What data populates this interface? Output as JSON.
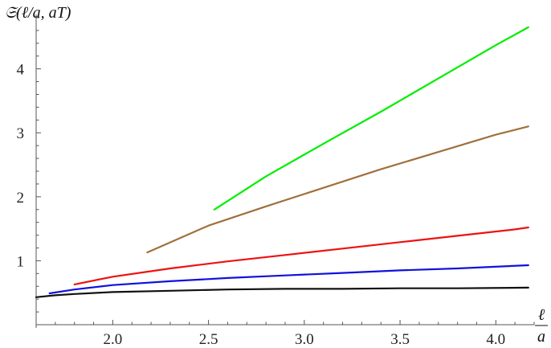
{
  "chart_data": {
    "type": "line",
    "title": "",
    "xlabel_top": "ℓ",
    "xlabel_bottom": "a",
    "ylabel": "𝔖(ℓ/a, aT)",
    "xlim": [
      1.6,
      4.2
    ],
    "ylim": [
      -0.05,
      4.85
    ],
    "xticks": [
      2.0,
      2.5,
      3.0,
      3.5,
      4.0
    ],
    "xtick_labels": [
      "2.0",
      "2.5",
      "3.0",
      "3.5",
      "4.0"
    ],
    "yticks": [
      1,
      2,
      3,
      4
    ],
    "ytick_labels": [
      "1",
      "2",
      "3",
      "4"
    ],
    "grid": false,
    "series": [
      {
        "color": "#00ee00",
        "x": [
          2.53,
          2.8,
          3.1,
          3.4,
          3.7,
          4.0,
          4.17
        ],
        "y": [
          1.8,
          2.32,
          2.83,
          3.33,
          3.85,
          4.37,
          4.65
        ]
      },
      {
        "color": "#a0703c",
        "x": [
          2.18,
          2.5,
          2.8,
          3.1,
          3.4,
          3.7,
          4.0,
          4.17
        ],
        "y": [
          1.13,
          1.55,
          1.85,
          2.14,
          2.43,
          2.7,
          2.97,
          3.1
        ]
      },
      {
        "color": "#ee1111",
        "x": [
          1.8,
          2.0,
          2.3,
          2.6,
          2.9,
          3.2,
          3.5,
          3.8,
          4.1,
          4.17
        ],
        "y": [
          0.63,
          0.75,
          0.88,
          0.99,
          1.09,
          1.19,
          1.29,
          1.39,
          1.49,
          1.52
        ]
      },
      {
        "color": "#1111dd",
        "x": [
          1.67,
          1.8,
          2.0,
          2.3,
          2.6,
          2.9,
          3.2,
          3.5,
          3.8,
          4.17
        ],
        "y": [
          0.49,
          0.55,
          0.62,
          0.68,
          0.73,
          0.77,
          0.81,
          0.85,
          0.88,
          0.93
        ]
      },
      {
        "color": "#111111",
        "x": [
          1.6,
          1.7,
          1.8,
          2.0,
          2.3,
          2.6,
          2.9,
          3.2,
          3.5,
          3.8,
          4.17
        ],
        "y": [
          0.43,
          0.46,
          0.48,
          0.51,
          0.53,
          0.55,
          0.56,
          0.56,
          0.57,
          0.57,
          0.58
        ]
      }
    ]
  }
}
